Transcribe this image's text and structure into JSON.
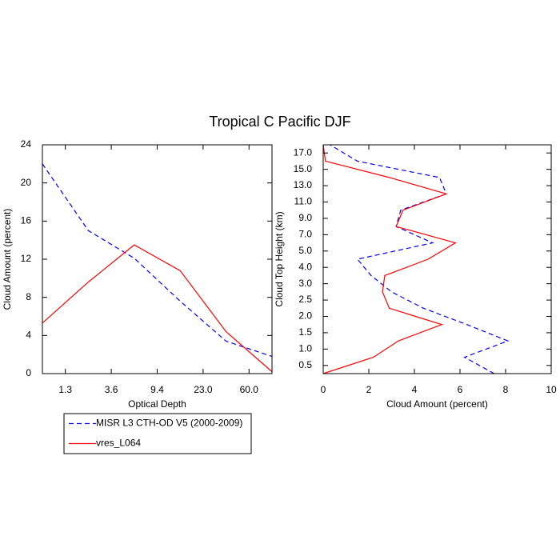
{
  "chart_data": [
    {
      "type": "line",
      "title": "Tropical C Pacific DJF",
      "xlabel": "Optical Depth",
      "ylabel": "Cloud Amount (percent)",
      "x": [
        0,
        1,
        2,
        3,
        4,
        5
      ],
      "xlim": [
        0,
        5
      ],
      "xticks": [
        {
          "value": 0.5,
          "label": "1.3"
        },
        {
          "value": 1.5,
          "label": "3.6"
        },
        {
          "value": 2.5,
          "label": "9.4"
        },
        {
          "value": 3.5,
          "label": "23.0"
        },
        {
          "value": 4.5,
          "label": "60.0"
        }
      ],
      "ylim": [
        0,
        24
      ],
      "yticks": [
        0,
        4,
        8,
        12,
        16,
        20,
        24
      ],
      "series": [
        {
          "name": "MISR L3 CTH-OD V5 (2000-2009)",
          "color": "#0000ff",
          "line_style": "dashed",
          "values": [
            22.0,
            15.0,
            12.1,
            7.6,
            3.4,
            1.8
          ]
        },
        {
          "name": "vres_L064",
          "color": "#ff0000",
          "line_style": "solid",
          "values": [
            5.3,
            9.6,
            13.5,
            10.8,
            4.4,
            0.2
          ]
        }
      ],
      "legend": "below"
    },
    {
      "type": "line",
      "orientation": "horizontal",
      "xlabel": "Cloud Amount (percent)",
      "ylabel": "Cloud Top Height (km)",
      "y": [
        0,
        1,
        2,
        3,
        4,
        5,
        6,
        7,
        8,
        9,
        10,
        11,
        12,
        13,
        14
      ],
      "ylim": [
        0,
        14
      ],
      "yticks": [
        {
          "value": 0.5,
          "label": "0.5"
        },
        {
          "value": 1.5,
          "label": "1.0"
        },
        {
          "value": 2.5,
          "label": "1.5"
        },
        {
          "value": 3.5,
          "label": "2.0"
        },
        {
          "value": 4.5,
          "label": "2.5"
        },
        {
          "value": 5.5,
          "label": "3.0"
        },
        {
          "value": 6.5,
          "label": "4.0"
        },
        {
          "value": 7.5,
          "label": "5.0"
        },
        {
          "value": 8.5,
          "label": "7.0"
        },
        {
          "value": 9.5,
          "label": "9.0"
        },
        {
          "value": 10.5,
          "label": "11.0"
        },
        {
          "value": 11.5,
          "label": "13.0"
        },
        {
          "value": 12.5,
          "label": "15.0"
        },
        {
          "value": 13.5,
          "label": "17.0"
        }
      ],
      "xlim": [
        0,
        10
      ],
      "xticks": [
        0,
        2,
        4,
        6,
        8,
        10
      ],
      "series": [
        {
          "name": "MISR L3 CTH-OD V5 (2000-2009)",
          "color": "#0000ff",
          "line_style": "dashed",
          "values": [
            7.5,
            6.2,
            8.1,
            6.3,
            4.4,
            3.0,
            2.1,
            1.5,
            4.8,
            3.2,
            3.4,
            5.4,
            5.1,
            1.5,
            0.3
          ]
        },
        {
          "name": "vres_L064",
          "color": "#ff0000",
          "line_style": "solid",
          "values": [
            0.0,
            2.2,
            3.3,
            5.2,
            2.9,
            2.6,
            2.7,
            4.6,
            5.8,
            3.2,
            3.5,
            5.4,
            2.9,
            0.1,
            0.0
          ]
        }
      ]
    }
  ]
}
